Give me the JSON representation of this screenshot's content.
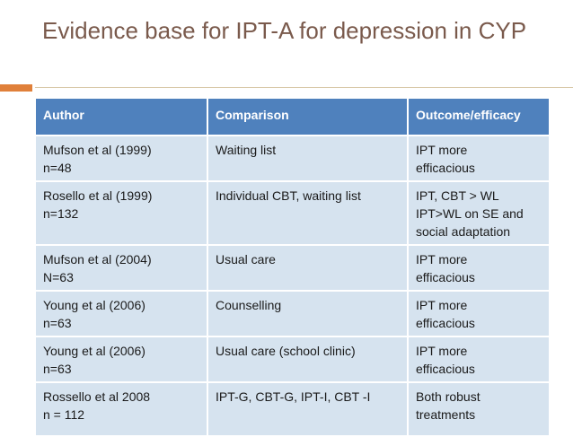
{
  "slide": {
    "title": "Evidence base for IPT-A for depression in CYP"
  },
  "colors": {
    "title": "#7a5a4c",
    "accent": "#e0803a",
    "header_bg": "#4f81bd",
    "row_bg": "#d6e3ef"
  },
  "table": {
    "headers": [
      "Author",
      "Comparison",
      "Outcome/efficacy"
    ],
    "rows": [
      {
        "author": [
          "Mufson et al (1999)",
          "n=48"
        ],
        "comparison": "Waiting list",
        "outcome": [
          "IPT more",
          "efficacious"
        ]
      },
      {
        "author": [
          "Rosello et al (1999)",
          "n=132"
        ],
        "comparison": "Individual CBT, waiting list",
        "outcome": [
          "IPT, CBT > WL",
          "IPT>WL on SE and",
          "social adaptation"
        ]
      },
      {
        "author": [
          "Mufson et al (2004)",
          "N=63"
        ],
        "comparison": "Usual care",
        "outcome": [
          "IPT more",
          "efficacious"
        ]
      },
      {
        "author": [
          "Young et al (2006)",
          "n=63"
        ],
        "comparison": "Counselling",
        "outcome": [
          "IPT more",
          "efficacious"
        ]
      },
      {
        "author": [
          "Young et al (2006)",
          "n=63"
        ],
        "comparison": "Usual care (school clinic)",
        "outcome": [
          "IPT more",
          "efficacious"
        ]
      },
      {
        "author": [
          "Rossello et al 2008",
          "n = 112"
        ],
        "comparison": "IPT-G, CBT-G, IPT-I, CBT -I",
        "outcome": [
          "Both robust",
          "treatments"
        ]
      }
    ]
  }
}
